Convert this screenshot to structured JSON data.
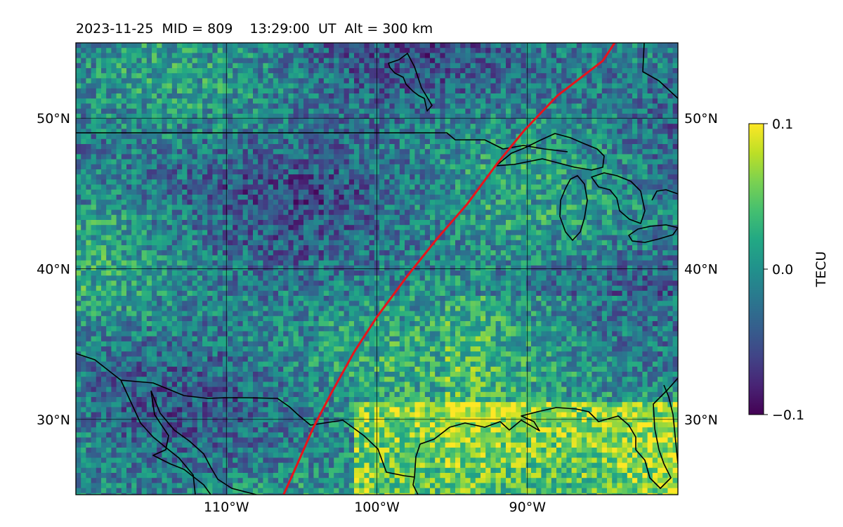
{
  "title": "2023-11-25  MID = 809    13:29:00  UT  Alt = 300 km",
  "map": {
    "lon_range": [
      -120,
      -80
    ],
    "lat_range": [
      25,
      55
    ],
    "lon_ticks": [
      {
        "value": -110,
        "label": "110°W"
      },
      {
        "value": -100,
        "label": "100°W"
      },
      {
        "value": -90,
        "label": "90°W"
      }
    ],
    "lat_ticks": [
      {
        "value": 50,
        "label": "50°N"
      },
      {
        "value": 40,
        "label": "40°N"
      },
      {
        "value": 30,
        "label": "30°N"
      }
    ],
    "field": "TEC perturbation (gridded 2D map, viridis colormap)"
  },
  "colorbar": {
    "label": "TECU",
    "min": -0.1,
    "max": 0.1,
    "ticks": [
      {
        "value": 0.1,
        "label": "0.1"
      },
      {
        "value": 0.0,
        "label": "0.0"
      },
      {
        "value": -0.1,
        "label": "−0.1"
      }
    ],
    "colormap": "viridis"
  },
  "track": {
    "color": "#e8141b",
    "points": [
      [
        -106.2,
        25
      ],
      [
        -105.3,
        27
      ],
      [
        -104.2,
        29.5
      ],
      [
        -103,
        31.8
      ],
      [
        -101.5,
        34.5
      ],
      [
        -100,
        36.8
      ],
      [
        -98,
        39.5
      ],
      [
        -96,
        42
      ],
      [
        -94,
        44.3
      ],
      [
        -92,
        47
      ],
      [
        -90.2,
        49.2
      ],
      [
        -88,
        51.5
      ],
      [
        -85,
        53.8
      ],
      [
        -84.2,
        55
      ]
    ]
  },
  "colors": {
    "coastline": "#000000",
    "grid": "#000000"
  }
}
